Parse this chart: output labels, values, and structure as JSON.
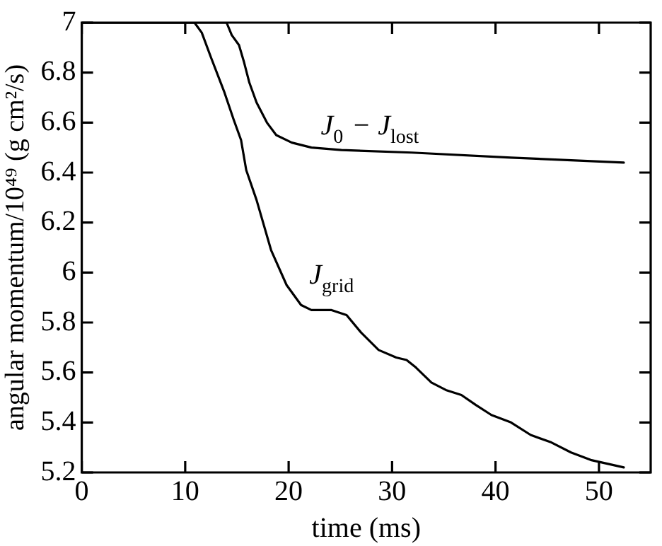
{
  "chart_data": {
    "type": "line",
    "xlabel": "time (ms)",
    "ylabel": "angular momentum/10⁴⁹ (g cm²/s)",
    "xlim": [
      0,
      55
    ],
    "xticks": [
      0,
      10,
      20,
      30,
      40,
      50
    ],
    "ylim": [
      5.2,
      7
    ],
    "yticks": [
      5.2,
      5.4,
      5.6,
      5.8,
      6,
      6.2,
      6.4,
      6.6,
      6.8,
      7
    ],
    "grid": false,
    "legend": false,
    "marker": "none",
    "line_style": "solid",
    "series": [
      {
        "name": "J$_{0}$ − J$_{lost}$",
        "color": "#000000",
        "x": [
          0,
          14.0,
          14.5,
          15.2,
          15.7,
          16.2,
          16.9,
          17.9,
          18.8,
          20.3,
          22.2,
          25.1,
          31.9,
          41.5,
          52.4
        ],
        "values": [
          7,
          7,
          6.95,
          6.91,
          6.84,
          6.76,
          6.68,
          6.6,
          6.55,
          6.52,
          6.5,
          6.49,
          6.48,
          6.46,
          6.44
        ]
      },
      {
        "name": "J$_{grid}$",
        "color": "#000000",
        "x": [
          0,
          10.9,
          11.6,
          12.5,
          13.8,
          14.7,
          15.4,
          15.9,
          16.9,
          18.3,
          19.8,
          21.2,
          22.2,
          24.1,
          25.6,
          27.0,
          28.7,
          30.4,
          31.4,
          32.3,
          33.8,
          35.2,
          36.7,
          38.1,
          39.6,
          41.5,
          43.4,
          45.4,
          47.3,
          49.2,
          52.4
        ],
        "values": [
          7,
          7,
          6.96,
          6.86,
          6.72,
          6.61,
          6.53,
          6.41,
          6.29,
          6.09,
          5.95,
          5.87,
          5.85,
          5.85,
          5.83,
          5.76,
          5.69,
          5.66,
          5.65,
          5.62,
          5.56,
          5.53,
          5.51,
          5.47,
          5.43,
          5.4,
          5.35,
          5.32,
          5.28,
          5.25,
          5.22
        ]
      }
    ]
  }
}
